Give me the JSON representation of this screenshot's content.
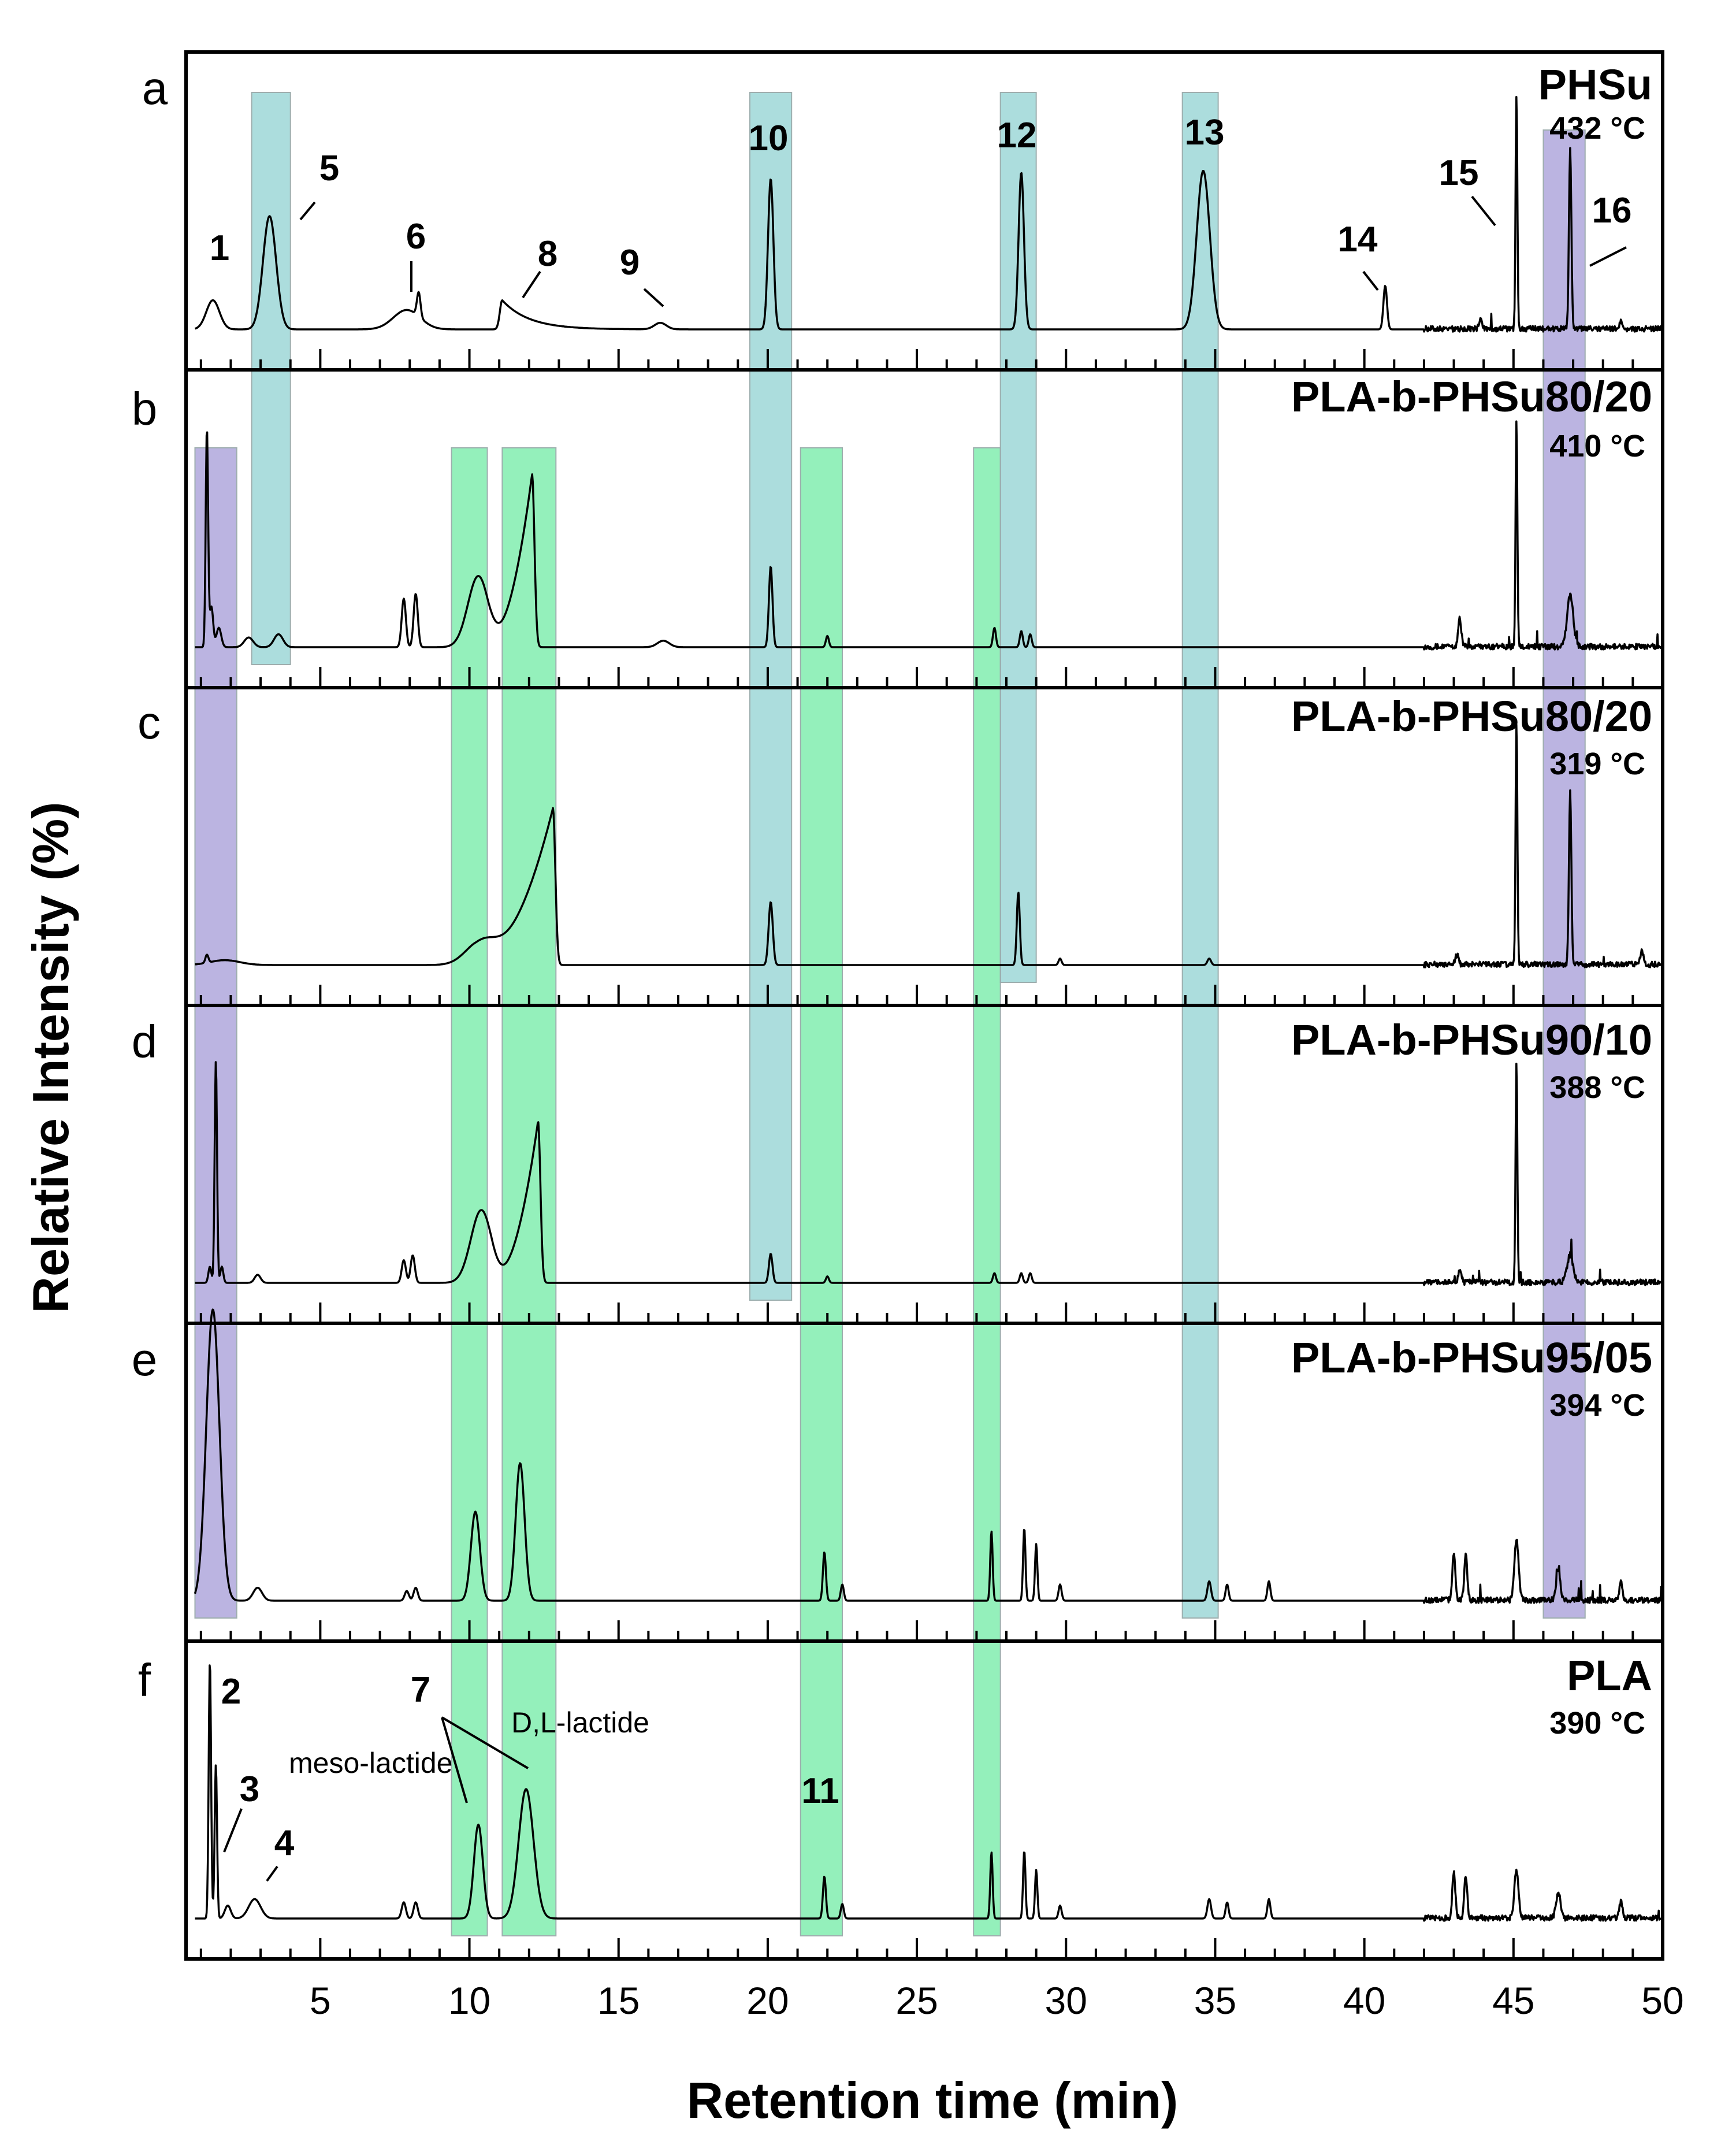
{
  "chart_data": {
    "type": "line",
    "title": "",
    "xlabel": "Retention time (min)",
    "ylabel": "Relative Intensity (%)",
    "xlim": [
      0.5,
      50
    ],
    "x_ticks": [
      5,
      10,
      15,
      20,
      25,
      30,
      35,
      40,
      45,
      50
    ],
    "panels": [
      {
        "letter": "a",
        "name": "PHSu",
        "temperature": "432 °C",
        "peaks": [
          {
            "x": 1.4,
            "h": 0.18,
            "w": 0.22,
            "shape": "g"
          },
          {
            "x": 3.3,
            "h": 0.7,
            "w": 0.22,
            "shape": "g"
          },
          {
            "x": 7.9,
            "h": 0.12,
            "w": 0.45,
            "shape": "g"
          },
          {
            "x": 8.3,
            "h": 0.15,
            "w": 0.06,
            "shape": "g"
          },
          {
            "x": 11.1,
            "h": 0.18,
            "w": 0.3,
            "shape": "tail"
          },
          {
            "x": 16.4,
            "h": 0.04,
            "w": 0.2,
            "shape": "g"
          },
          {
            "x": 20.1,
            "h": 0.93,
            "w": 0.09,
            "shape": "g"
          },
          {
            "x": 28.5,
            "h": 0.97,
            "w": 0.09,
            "shape": "g"
          },
          {
            "x": 34.6,
            "h": 0.98,
            "w": 0.22,
            "shape": "g"
          },
          {
            "x": 40.7,
            "h": 0.27,
            "w": 0.06,
            "shape": "g"
          },
          {
            "x": 45.1,
            "h": 1.45,
            "w": 0.03,
            "shape": "g"
          },
          {
            "x": 46.9,
            "h": 1.12,
            "w": 0.04,
            "shape": "g"
          },
          {
            "x": 43.9,
            "h": 0.05,
            "w": 0.05,
            "shape": "g"
          },
          {
            "x": 48.6,
            "h": 0.05,
            "w": 0.05,
            "shape": "g"
          }
        ]
      },
      {
        "letter": "b",
        "name": "PLA-b-PHSu80/20",
        "temperature": "410 °C",
        "peaks": [
          {
            "x": 1.2,
            "h": 1.35,
            "w": 0.04,
            "shape": "g"
          },
          {
            "x": 1.35,
            "h": 0.25,
            "w": 0.06,
            "shape": "g"
          },
          {
            "x": 1.6,
            "h": 0.12,
            "w": 0.08,
            "shape": "g"
          },
          {
            "x": 2.6,
            "h": 0.06,
            "w": 0.15,
            "shape": "g"
          },
          {
            "x": 3.6,
            "h": 0.08,
            "w": 0.15,
            "shape": "g"
          },
          {
            "x": 7.8,
            "h": 0.3,
            "w": 0.07,
            "shape": "g"
          },
          {
            "x": 8.2,
            "h": 0.33,
            "w": 0.07,
            "shape": "g"
          },
          {
            "x": 10.3,
            "h": 0.44,
            "w": 0.35,
            "shape": "g"
          },
          {
            "x": 12.1,
            "h": 1.07,
            "w": 0.75,
            "shape": "ramp"
          },
          {
            "x": 16.5,
            "h": 0.04,
            "w": 0.2,
            "shape": "g"
          },
          {
            "x": 20.1,
            "h": 0.5,
            "w": 0.06,
            "shape": "g"
          },
          {
            "x": 22.0,
            "h": 0.07,
            "w": 0.05,
            "shape": "g"
          },
          {
            "x": 27.6,
            "h": 0.12,
            "w": 0.05,
            "shape": "g"
          },
          {
            "x": 28.5,
            "h": 0.1,
            "w": 0.05,
            "shape": "g"
          },
          {
            "x": 28.8,
            "h": 0.08,
            "w": 0.05,
            "shape": "g"
          },
          {
            "x": 43.2,
            "h": 0.18,
            "w": 0.05,
            "shape": "g"
          },
          {
            "x": 45.1,
            "h": 1.4,
            "w": 0.03,
            "shape": "g"
          },
          {
            "x": 46.9,
            "h": 0.32,
            "w": 0.1,
            "shape": "g"
          }
        ]
      },
      {
        "letter": "c",
        "name": "PLA-b-PHSu80/20",
        "temperature": "319 °C",
        "peaks": [
          {
            "x": 1.2,
            "h": 0.05,
            "w": 0.05,
            "shape": "g"
          },
          {
            "x": 1.8,
            "h": 0.03,
            "w": 0.5,
            "shape": "g"
          },
          {
            "x": 10.4,
            "h": 0.15,
            "w": 0.5,
            "shape": "g"
          },
          {
            "x": 12.8,
            "h": 0.97,
            "w": 1.3,
            "shape": "ramp"
          },
          {
            "x": 20.1,
            "h": 0.39,
            "w": 0.07,
            "shape": "g"
          },
          {
            "x": 28.4,
            "h": 0.45,
            "w": 0.05,
            "shape": "g"
          },
          {
            "x": 29.8,
            "h": 0.04,
            "w": 0.05,
            "shape": "g"
          },
          {
            "x": 34.8,
            "h": 0.04,
            "w": 0.06,
            "shape": "g"
          },
          {
            "x": 43.1,
            "h": 0.06,
            "w": 0.05,
            "shape": "g"
          },
          {
            "x": 45.1,
            "h": 1.5,
            "w": 0.03,
            "shape": "g"
          },
          {
            "x": 46.9,
            "h": 1.07,
            "w": 0.04,
            "shape": "g"
          },
          {
            "x": 49.3,
            "h": 0.09,
            "w": 0.05,
            "shape": "g"
          }
        ]
      },
      {
        "letter": "d",
        "name": "PLA-b-PHSu90/10",
        "temperature": "388 °C",
        "peaks": [
          {
            "x": 1.3,
            "h": 0.1,
            "w": 0.05,
            "shape": "g"
          },
          {
            "x": 1.5,
            "h": 1.37,
            "w": 0.04,
            "shape": "g"
          },
          {
            "x": 1.7,
            "h": 0.1,
            "w": 0.05,
            "shape": "g"
          },
          {
            "x": 2.9,
            "h": 0.05,
            "w": 0.1,
            "shape": "g"
          },
          {
            "x": 7.8,
            "h": 0.14,
            "w": 0.07,
            "shape": "g"
          },
          {
            "x": 8.1,
            "h": 0.17,
            "w": 0.07,
            "shape": "g"
          },
          {
            "x": 10.4,
            "h": 0.45,
            "w": 0.35,
            "shape": "g"
          },
          {
            "x": 12.3,
            "h": 1.0,
            "w": 0.75,
            "shape": "ramp"
          },
          {
            "x": 20.1,
            "h": 0.18,
            "w": 0.06,
            "shape": "g"
          },
          {
            "x": 22.0,
            "h": 0.04,
            "w": 0.05,
            "shape": "g"
          },
          {
            "x": 27.6,
            "h": 0.06,
            "w": 0.05,
            "shape": "g"
          },
          {
            "x": 28.5,
            "h": 0.06,
            "w": 0.05,
            "shape": "g"
          },
          {
            "x": 28.8,
            "h": 0.06,
            "w": 0.05,
            "shape": "g"
          },
          {
            "x": 43.2,
            "h": 0.08,
            "w": 0.05,
            "shape": "g"
          },
          {
            "x": 45.1,
            "h": 1.35,
            "w": 0.03,
            "shape": "g"
          },
          {
            "x": 46.9,
            "h": 0.17,
            "w": 0.1,
            "shape": "g"
          }
        ]
      },
      {
        "letter": "e",
        "name": "PLA-b-PHSu95/05",
        "temperature": "394 °C",
        "peaks": [
          {
            "x": 1.4,
            "h": 1.8,
            "w": 0.22,
            "shape": "g"
          },
          {
            "x": 2.9,
            "h": 0.08,
            "w": 0.15,
            "shape": "g"
          },
          {
            "x": 7.9,
            "h": 0.06,
            "w": 0.07,
            "shape": "g"
          },
          {
            "x": 8.2,
            "h": 0.08,
            "w": 0.07,
            "shape": "g"
          },
          {
            "x": 10.2,
            "h": 0.55,
            "w": 0.15,
            "shape": "g"
          },
          {
            "x": 11.7,
            "h": 0.85,
            "w": 0.15,
            "shape": "g"
          },
          {
            "x": 21.9,
            "h": 0.3,
            "w": 0.05,
            "shape": "g"
          },
          {
            "x": 22.5,
            "h": 0.1,
            "w": 0.05,
            "shape": "g"
          },
          {
            "x": 27.5,
            "h": 0.43,
            "w": 0.04,
            "shape": "g"
          },
          {
            "x": 28.6,
            "h": 0.45,
            "w": 0.04,
            "shape": "g"
          },
          {
            "x": 29.0,
            "h": 0.35,
            "w": 0.04,
            "shape": "g"
          },
          {
            "x": 29.8,
            "h": 0.1,
            "w": 0.05,
            "shape": "g"
          },
          {
            "x": 34.8,
            "h": 0.12,
            "w": 0.06,
            "shape": "g"
          },
          {
            "x": 35.4,
            "h": 0.1,
            "w": 0.05,
            "shape": "g"
          },
          {
            "x": 36.8,
            "h": 0.12,
            "w": 0.05,
            "shape": "g"
          },
          {
            "x": 43.0,
            "h": 0.3,
            "w": 0.05,
            "shape": "g"
          },
          {
            "x": 43.4,
            "h": 0.28,
            "w": 0.05,
            "shape": "g"
          },
          {
            "x": 45.1,
            "h": 0.38,
            "w": 0.07,
            "shape": "g"
          },
          {
            "x": 46.5,
            "h": 0.18,
            "w": 0.07,
            "shape": "g"
          },
          {
            "x": 48.6,
            "h": 0.12,
            "w": 0.05,
            "shape": "g"
          }
        ]
      },
      {
        "letter": "f",
        "name": "PLA",
        "temperature": "390 °C",
        "peaks": [
          {
            "x": 1.3,
            "h": 1.6,
            "w": 0.04,
            "shape": "g"
          },
          {
            "x": 1.5,
            "h": 0.95,
            "w": 0.04,
            "shape": "g"
          },
          {
            "x": 1.9,
            "h": 0.08,
            "w": 0.1,
            "shape": "g"
          },
          {
            "x": 2.8,
            "h": 0.12,
            "w": 0.2,
            "shape": "g"
          },
          {
            "x": 7.8,
            "h": 0.1,
            "w": 0.07,
            "shape": "g"
          },
          {
            "x": 8.2,
            "h": 0.1,
            "w": 0.07,
            "shape": "g"
          },
          {
            "x": 10.3,
            "h": 0.58,
            "w": 0.15,
            "shape": "g"
          },
          {
            "x": 11.9,
            "h": 0.8,
            "w": 0.25,
            "shape": "g"
          },
          {
            "x": 21.9,
            "h": 0.26,
            "w": 0.05,
            "shape": "g"
          },
          {
            "x": 22.5,
            "h": 0.09,
            "w": 0.05,
            "shape": "g"
          },
          {
            "x": 27.5,
            "h": 0.41,
            "w": 0.04,
            "shape": "g"
          },
          {
            "x": 28.6,
            "h": 0.42,
            "w": 0.04,
            "shape": "g"
          },
          {
            "x": 29.0,
            "h": 0.3,
            "w": 0.04,
            "shape": "g"
          },
          {
            "x": 29.8,
            "h": 0.08,
            "w": 0.05,
            "shape": "g"
          },
          {
            "x": 34.8,
            "h": 0.12,
            "w": 0.06,
            "shape": "g"
          },
          {
            "x": 35.4,
            "h": 0.1,
            "w": 0.05,
            "shape": "g"
          },
          {
            "x": 36.8,
            "h": 0.12,
            "w": 0.05,
            "shape": "g"
          },
          {
            "x": 43.0,
            "h": 0.28,
            "w": 0.05,
            "shape": "g"
          },
          {
            "x": 43.4,
            "h": 0.26,
            "w": 0.05,
            "shape": "g"
          },
          {
            "x": 45.1,
            "h": 0.3,
            "w": 0.07,
            "shape": "g"
          },
          {
            "x": 46.5,
            "h": 0.16,
            "w": 0.07,
            "shape": "g"
          },
          {
            "x": 48.6,
            "h": 0.1,
            "w": 0.05,
            "shape": "g"
          }
        ]
      }
    ],
    "highlight_bands": [
      {
        "group": "purple",
        "x0": 0.8,
        "x1": 2.2,
        "from": "b",
        "to": "e"
      },
      {
        "group": "blue",
        "x0": 2.7,
        "x1": 4.0,
        "from": "a",
        "to": "b"
      },
      {
        "group": "green",
        "x0": 9.4,
        "x1": 10.6,
        "from": "b",
        "to": "f"
      },
      {
        "group": "green",
        "x0": 11.1,
        "x1": 12.9,
        "from": "b",
        "to": "f"
      },
      {
        "group": "blue",
        "x0": 19.4,
        "x1": 20.8,
        "from": "a",
        "to": "d"
      },
      {
        "group": "green",
        "x0": 21.1,
        "x1": 22.5,
        "from": "b",
        "to": "f"
      },
      {
        "group": "green",
        "x0": 26.9,
        "x1": 27.8,
        "from": "b",
        "to": "f"
      },
      {
        "group": "blue",
        "x0": 27.8,
        "x1": 29.0,
        "from": "a",
        "to": "c"
      },
      {
        "group": "blue",
        "x0": 33.9,
        "x1": 35.1,
        "from": "a",
        "to": "e"
      },
      {
        "group": "purple",
        "x0": 46.0,
        "x1": 47.4,
        "from": "a",
        "to": "e"
      }
    ],
    "band_colors": {
      "purple": "#b8b0e0",
      "blue": "#a8dcdc",
      "green": "#8ff0b8"
    },
    "peak_labels": [
      {
        "text": "1",
        "panel": "a",
        "x": 1.4
      },
      {
        "text": "5",
        "panel": "a",
        "x": 3.3
      },
      {
        "text": "6",
        "panel": "a",
        "x": 8.0
      },
      {
        "text": "8",
        "panel": "a",
        "x": 11.1
      },
      {
        "text": "9",
        "panel": "a",
        "x": 16.4
      },
      {
        "text": "10",
        "panel": "a",
        "x": 20.1
      },
      {
        "text": "12",
        "panel": "a",
        "x": 28.5
      },
      {
        "text": "13",
        "panel": "a",
        "x": 34.6
      },
      {
        "text": "14",
        "panel": "a",
        "x": 40.7
      },
      {
        "text": "15",
        "panel": "a",
        "x": 45.1
      },
      {
        "text": "16",
        "panel": "a",
        "x": 46.9
      },
      {
        "text": "2",
        "panel": "f",
        "x": 1.3
      },
      {
        "text": "3",
        "panel": "f",
        "x": 1.5
      },
      {
        "text": "4",
        "panel": "f",
        "x": 2.8
      },
      {
        "text": "7",
        "panel": "f",
        "x": 10.3
      },
      {
        "text": "11",
        "panel": "f",
        "x": 21.9
      }
    ],
    "annotations": [
      "meso-lactide",
      "D,L-lactide"
    ]
  }
}
